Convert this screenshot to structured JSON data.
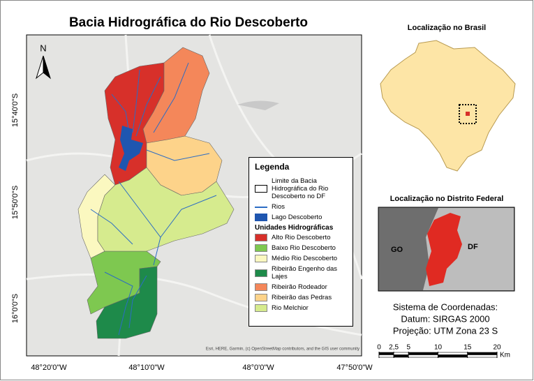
{
  "title": "Bacia Hidrográfica do Rio Descoberto",
  "north_arrow": "N",
  "map": {
    "lat_labels": [
      "15°40'0\"S",
      "15°50'0\"S",
      "16°0'0\"S"
    ],
    "lon_labels": [
      "48°20'0\"W",
      "48°10'0\"W",
      "48°0'0\"W",
      "47°50'0\"W"
    ],
    "attribution": "Esri, HERE, Garmin, (c) OpenStreetMap contributors, and the GIS user community"
  },
  "legend": {
    "title": "Legenda",
    "boundary": "Limite da Bacia Hidrográfica do Rio Descoberto no DF",
    "rivers": "Rios",
    "river_color": "#2b6cc4",
    "lake": "Lago Descoberto",
    "lake_color": "#1f56b0",
    "units_header": "Unidades Hidrográficas",
    "units": [
      {
        "name": "Alto Rio Descoberto",
        "color": "#d7302a"
      },
      {
        "name": "Baixo Rio Descoberto",
        "color": "#7ec850"
      },
      {
        "name": "Médio Rio Descoberto",
        "color": "#fbf8c0"
      },
      {
        "name": "Ribeirão Engenho das Lajes",
        "color": "#1e8a4a"
      },
      {
        "name": "Ribeirão Rodeador",
        "color": "#f4875a"
      },
      {
        "name": "Ribeirão das Pedras",
        "color": "#fdd38a"
      },
      {
        "name": "Rio Melchior",
        "color": "#d6eb8e"
      }
    ]
  },
  "inset_brazil": {
    "title": "Localização no Brasil"
  },
  "inset_df": {
    "title": "Localização no Distrito Federal",
    "labels": [
      "GO",
      "DF"
    ]
  },
  "coordinates": {
    "lines": [
      "Sistema de Coordenadas:",
      "Datum: SIRGAS 2000",
      "Projeção: UTM Zona 23 S"
    ]
  },
  "scale": {
    "ticks": [
      0,
      {
        "value": 2.5,
        "label": "2,5"
      },
      5,
      10,
      15,
      20
    ],
    "unit": "Km"
  }
}
